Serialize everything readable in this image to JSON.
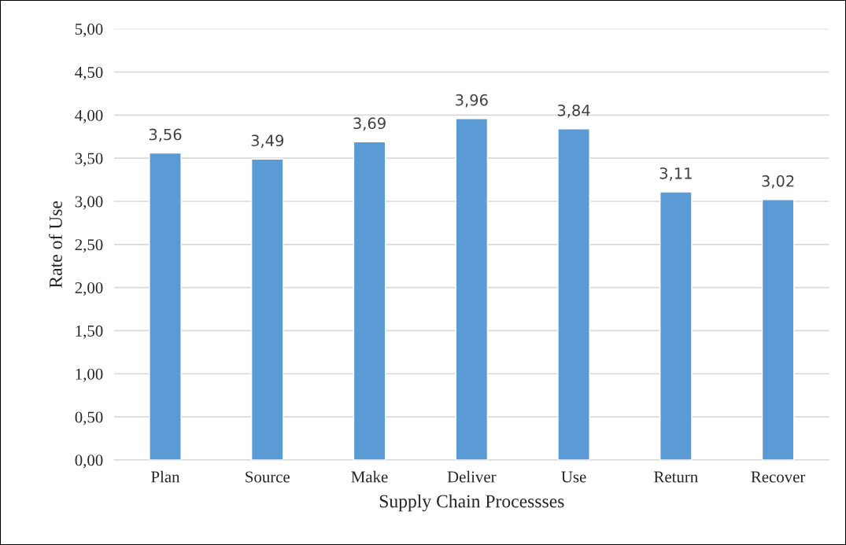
{
  "chart_data": {
    "type": "bar",
    "xlabel": "Supply Chain Processses",
    "ylabel": "Rate of Use",
    "categories": [
      "Plan",
      "Source",
      "Make",
      "Deliver",
      "Use",
      "Return",
      "Recover"
    ],
    "values": [
      3.56,
      3.49,
      3.69,
      3.96,
      3.84,
      3.11,
      3.02
    ],
    "value_labels": [
      "3,56",
      "3,49",
      "3,69",
      "3,96",
      "3,84",
      "3,11",
      "3,02"
    ],
    "color": "#5b9bd5",
    "ylim": [
      0,
      5
    ],
    "yticks": [
      {
        "value": 0,
        "label": "0,00"
      },
      {
        "value": 0.5,
        "label": "0,50"
      },
      {
        "value": 1,
        "label": "1,00"
      },
      {
        "value": 1.5,
        "label": "1,50"
      },
      {
        "value": 2,
        "label": "2,00"
      },
      {
        "value": 2.5,
        "label": "2,50"
      },
      {
        "value": 3,
        "label": "3,00"
      },
      {
        "value": 3.5,
        "label": "3,50"
      },
      {
        "value": 4,
        "label": "4,00"
      },
      {
        "value": 4.5,
        "label": "4,50"
      },
      {
        "value": 5,
        "label": "5,00"
      }
    ],
    "grid": "y",
    "legend": false
  }
}
